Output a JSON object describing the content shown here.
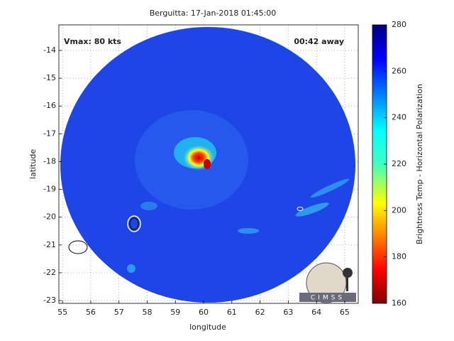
{
  "chart_data": {
    "type": "image",
    "title": "Berguitta: 17-Jan-2018 01:45:00",
    "xlabel": "longitude",
    "ylabel": "latitude",
    "xlim": [
      54.87,
      65.48
    ],
    "xticks": [
      55,
      56,
      57,
      58,
      59,
      60,
      61,
      62,
      63,
      64,
      65
    ],
    "ylim": [
      -23.1,
      -13.08
    ],
    "yticks": [
      -14,
      -15,
      -16,
      -17,
      -18,
      -19,
      -20,
      -21,
      -22,
      -23
    ],
    "grid": true,
    "annotations": [
      "Vmax: 80 kts",
      "00:42 away"
    ],
    "logo": "CIMSS",
    "colorbar": {
      "label": "Brightness Temp - Horizontal Polarization",
      "lim": [
        160,
        280
      ],
      "ticks": [
        160,
        180,
        200,
        220,
        240,
        260,
        280
      ]
    }
  }
}
